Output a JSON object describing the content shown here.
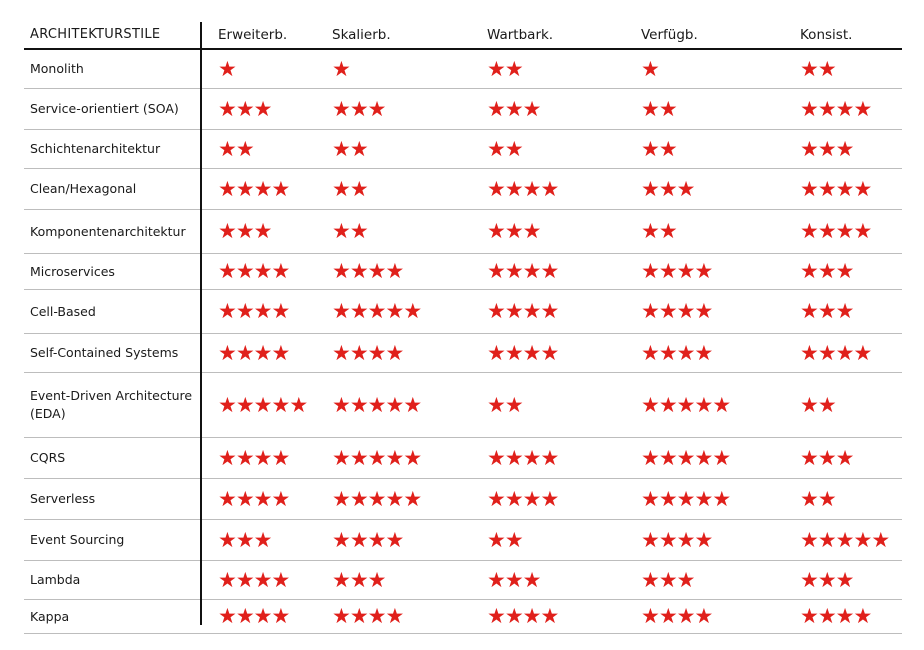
{
  "header": {
    "style_label": "ARCHITEKTURSTILE",
    "columns": [
      "Erweiterb.",
      "Skalierb.",
      "Wartbark.",
      "Verfügb.",
      "Konsist."
    ]
  },
  "star_color": "#e0201b",
  "star_icon": "star-icon",
  "rows": [
    {
      "name": "Monolith",
      "ratings": [
        1,
        1,
        2,
        1,
        2
      ]
    },
    {
      "name": "Service-orientiert (SOA)",
      "ratings": [
        3,
        3,
        3,
        2,
        4
      ]
    },
    {
      "name": "Schichtenarchitektur",
      "ratings": [
        2,
        2,
        2,
        2,
        3
      ]
    },
    {
      "name": "Clean/Hexagonal",
      "ratings": [
        4,
        2,
        4,
        3,
        4
      ]
    },
    {
      "name": "Komponentenarchitektur",
      "ratings": [
        3,
        2,
        3,
        2,
        4
      ]
    },
    {
      "name": "Microservices",
      "ratings": [
        4,
        4,
        4,
        4,
        3
      ]
    },
    {
      "name": "Cell-Based",
      "ratings": [
        4,
        5,
        4,
        4,
        3
      ]
    },
    {
      "name": "Self-Contained Systems",
      "ratings": [
        4,
        4,
        4,
        4,
        4
      ]
    },
    {
      "name": "Event-Driven Architecture (EDA)",
      "ratings": [
        5,
        5,
        2,
        5,
        2
      ]
    },
    {
      "name": "CQRS",
      "ratings": [
        4,
        5,
        4,
        5,
        3
      ]
    },
    {
      "name": "Serverless",
      "ratings": [
        4,
        5,
        4,
        5,
        2
      ]
    },
    {
      "name": "Event Sourcing",
      "ratings": [
        3,
        4,
        2,
        4,
        5
      ]
    },
    {
      "name": "Lambda",
      "ratings": [
        4,
        3,
        3,
        3,
        3
      ]
    },
    {
      "name": "Kappa",
      "ratings": [
        4,
        4,
        4,
        4,
        4
      ]
    }
  ]
}
